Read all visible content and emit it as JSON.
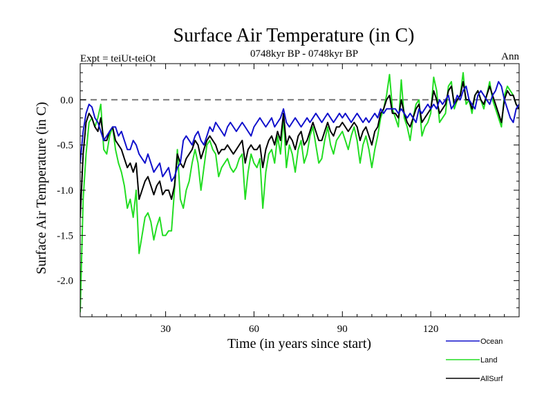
{
  "chart_data": {
    "type": "line",
    "title": "Surface Air Temperature (in C)",
    "subtitle_left": "Expt = teiUt-teiOt",
    "subtitle_center": "0748kyr BP - 0748kyr BP",
    "subtitle_right": "Ann",
    "xlabel": "Time (in years since start)",
    "ylabel": "Surface Air Temperature (in C)",
    "xlim": [
      1,
      150
    ],
    "ylim": [
      -2.4,
      0.4
    ],
    "x_ticks": [
      30,
      60,
      90,
      120
    ],
    "x_tick_labels": [
      "30",
      "60",
      "90",
      "120"
    ],
    "y_ticks": [
      0.0,
      -0.5,
      -1.0,
      -1.5,
      -2.0
    ],
    "y_tick_labels": [
      "0.0",
      "-0.5",
      "-1.0",
      "-1.5",
      "-2.0"
    ],
    "reference_line": 0.0,
    "legend_position": "bottom-right",
    "series": [
      {
        "name": "Ocean",
        "color": "#1010cc",
        "values": [
          -0.7,
          -0.35,
          -0.15,
          -0.05,
          -0.08,
          -0.2,
          -0.25,
          -0.35,
          -0.45,
          -0.4,
          -0.35,
          -0.3,
          -0.3,
          -0.4,
          -0.35,
          -0.45,
          -0.55,
          -0.55,
          -0.45,
          -0.5,
          -0.6,
          -0.65,
          -0.7,
          -0.6,
          -0.7,
          -0.8,
          -0.75,
          -0.7,
          -0.85,
          -0.8,
          -0.75,
          -0.9,
          -0.85,
          -0.75,
          -0.7,
          -0.45,
          -0.4,
          -0.45,
          -0.5,
          -0.4,
          -0.35,
          -0.45,
          -0.5,
          -0.4,
          -0.3,
          -0.35,
          -0.25,
          -0.3,
          -0.35,
          -0.4,
          -0.3,
          -0.25,
          -0.3,
          -0.35,
          -0.3,
          -0.25,
          -0.3,
          -0.35,
          -0.4,
          -0.3,
          -0.25,
          -0.2,
          -0.25,
          -0.3,
          -0.25,
          -0.2,
          -0.3,
          -0.25,
          -0.2,
          -0.1,
          -0.25,
          -0.3,
          -0.25,
          -0.2,
          -0.25,
          -0.3,
          -0.25,
          -0.2,
          -0.25,
          -0.2,
          -0.15,
          -0.2,
          -0.25,
          -0.2,
          -0.15,
          -0.2,
          -0.25,
          -0.2,
          -0.15,
          -0.2,
          -0.15,
          -0.2,
          -0.25,
          -0.2,
          -0.15,
          -0.2,
          -0.25,
          -0.2,
          -0.25,
          -0.2,
          -0.15,
          -0.2,
          -0.1,
          -0.15,
          -0.1,
          -0.1,
          -0.1,
          -0.1,
          -0.15,
          -0.1,
          -0.15,
          -0.2,
          -0.15,
          -0.2,
          -0.25,
          -0.1,
          -0.15,
          -0.1,
          -0.05,
          -0.1,
          -0.05,
          -0.1,
          0.0,
          -0.05,
          0.0,
          0.05,
          -0.1,
          -0.05,
          0.05,
          0.0,
          0.1,
          0.15,
          0.0,
          -0.05,
          -0.1,
          0.05,
          0.1,
          0.05,
          0.0,
          -0.05,
          0.05,
          0.1,
          0.2,
          0.15,
          0.0,
          -0.1,
          -0.2,
          -0.25,
          -0.1,
          -0.05
        ]
      },
      {
        "name": "Land",
        "color": "#22dd22",
        "values": [
          -2.35,
          -1.1,
          -0.6,
          -0.25,
          -0.2,
          -0.3,
          -0.2,
          -0.05,
          -0.55,
          -0.6,
          -0.4,
          -0.3,
          -0.55,
          -0.7,
          -0.8,
          -0.95,
          -1.2,
          -1.1,
          -1.3,
          -1.0,
          -1.7,
          -1.5,
          -1.3,
          -1.25,
          -1.35,
          -1.55,
          -1.4,
          -1.3,
          -1.5,
          -1.5,
          -1.45,
          -1.45,
          -1.0,
          -0.55,
          -1.1,
          -1.2,
          -1.0,
          -0.9,
          -0.7,
          -0.55,
          -0.7,
          -1.0,
          -0.75,
          -0.5,
          -0.45,
          -0.55,
          -0.6,
          -0.85,
          -0.75,
          -0.7,
          -0.65,
          -0.75,
          -0.8,
          -0.75,
          -0.65,
          -0.6,
          -1.1,
          -0.8,
          -0.6,
          -0.7,
          -0.75,
          -0.65,
          -1.2,
          -0.8,
          -0.6,
          -0.55,
          -0.7,
          -0.4,
          -0.6,
          -0.2,
          -0.75,
          -0.5,
          -0.6,
          -0.8,
          -0.55,
          -0.45,
          -0.7,
          -0.6,
          -0.4,
          -0.3,
          -0.5,
          -0.7,
          -0.65,
          -0.45,
          -0.3,
          -0.5,
          -0.6,
          -0.45,
          -0.4,
          -0.35,
          -0.45,
          -0.55,
          -0.4,
          -0.3,
          -0.45,
          -0.7,
          -0.5,
          -0.4,
          -0.55,
          -0.75,
          -0.55,
          -0.4,
          -0.2,
          -0.1,
          0.05,
          0.28,
          -0.1,
          -0.2,
          -0.3,
          0.22,
          -0.2,
          -0.3,
          -0.45,
          -0.2,
          -0.05,
          0.0,
          -0.4,
          -0.3,
          -0.25,
          -0.15,
          0.25,
          0.1,
          -0.25,
          -0.2,
          -0.15,
          0.15,
          0.2,
          -0.1,
          0.0,
          0.05,
          0.3,
          -0.05,
          0.0,
          -0.15,
          0.05,
          0.1,
          0.0,
          -0.1,
          0.05,
          0.2,
          0.0,
          -0.1,
          -0.2,
          -0.3,
          0.05,
          0.15,
          0.1,
          0.05,
          -0.05,
          -0.1
        ]
      },
      {
        "name": "AllSurf",
        "color": "#000000",
        "values": [
          -1.3,
          -0.6,
          -0.25,
          -0.15,
          -0.2,
          -0.3,
          -0.35,
          -0.2,
          -0.45,
          -0.45,
          -0.35,
          -0.3,
          -0.45,
          -0.5,
          -0.55,
          -0.65,
          -0.75,
          -0.7,
          -0.8,
          -0.7,
          -1.1,
          -1.0,
          -0.9,
          -0.85,
          -0.95,
          -1.05,
          -0.95,
          -0.9,
          -1.05,
          -1.0,
          -1.0,
          -1.1,
          -0.95,
          -0.6,
          -0.7,
          -0.75,
          -0.65,
          -0.6,
          -0.55,
          -0.45,
          -0.5,
          -0.65,
          -0.55,
          -0.45,
          -0.4,
          -0.45,
          -0.5,
          -0.6,
          -0.55,
          -0.55,
          -0.5,
          -0.55,
          -0.6,
          -0.55,
          -0.5,
          -0.45,
          -0.7,
          -0.55,
          -0.5,
          -0.55,
          -0.55,
          -0.5,
          -0.75,
          -0.55,
          -0.45,
          -0.4,
          -0.5,
          -0.35,
          -0.45,
          -0.15,
          -0.5,
          -0.4,
          -0.45,
          -0.55,
          -0.4,
          -0.35,
          -0.5,
          -0.45,
          -0.35,
          -0.25,
          -0.35,
          -0.45,
          -0.45,
          -0.35,
          -0.25,
          -0.35,
          -0.4,
          -0.3,
          -0.3,
          -0.25,
          -0.3,
          -0.35,
          -0.3,
          -0.25,
          -0.3,
          -0.45,
          -0.35,
          -0.3,
          -0.4,
          -0.5,
          -0.35,
          -0.3,
          -0.15,
          -0.1,
          0.0,
          0.05,
          -0.15,
          -0.15,
          -0.2,
          0.0,
          -0.15,
          -0.25,
          -0.3,
          -0.2,
          -0.1,
          -0.05,
          -0.25,
          -0.2,
          -0.15,
          -0.1,
          0.1,
          0.0,
          -0.15,
          -0.1,
          -0.05,
          0.1,
          0.15,
          -0.05,
          0.0,
          0.05,
          0.2,
          0.0,
          0.0,
          -0.1,
          0.05,
          0.1,
          0.0,
          -0.05,
          0.05,
          0.15,
          0.05,
          -0.05,
          -0.15,
          -0.25,
          0.0,
          0.1,
          0.05,
          0.05,
          -0.05,
          -0.1
        ]
      }
    ]
  }
}
